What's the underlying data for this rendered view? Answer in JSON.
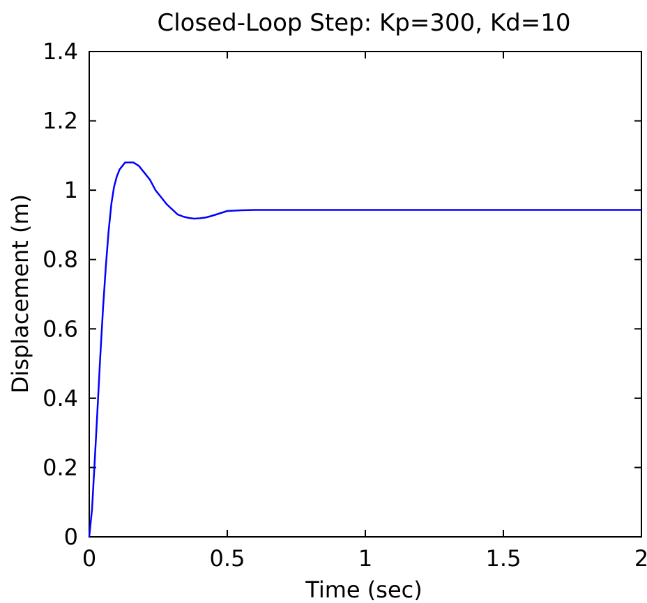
{
  "chart_data": {
    "type": "line",
    "title": "Closed-Loop Step: Kp=300, Kd=10",
    "xlabel": "Time (sec)",
    "ylabel": "Displacement (m)",
    "xlim": [
      0,
      2
    ],
    "ylim": [
      0,
      1.4
    ],
    "xticks": [
      0,
      0.5,
      1,
      1.5,
      2
    ],
    "yticks": [
      0,
      0.2,
      0.4,
      0.6,
      0.8,
      1,
      1.2,
      1.4
    ],
    "xtick_labels": [
      "0",
      "0.5",
      "1",
      "1.5",
      "2"
    ],
    "ytick_labels": [
      "0",
      "0.2",
      "0.4",
      "0.6",
      "0.8",
      "1",
      "1.2",
      "1.4"
    ],
    "grid": false,
    "line_color": "#0000ff",
    "series": [
      {
        "x": [
          0,
          0.01,
          0.02,
          0.03,
          0.04,
          0.05,
          0.06,
          0.07,
          0.08,
          0.09,
          0.1,
          0.11,
          0.12,
          0.13,
          0.14,
          0.15,
          0.16,
          0.17,
          0.18,
          0.19,
          0.2,
          0.22,
          0.24,
          0.26,
          0.28,
          0.3,
          0.32,
          0.34,
          0.36,
          0.38,
          0.4,
          0.42,
          0.44,
          0.46,
          0.48,
          0.5,
          0.55,
          0.6,
          0.7,
          0.8,
          1.0,
          1.2,
          1.4,
          1.6,
          1.8,
          2.0
        ],
        "values": [
          0,
          0.08,
          0.22,
          0.37,
          0.52,
          0.66,
          0.78,
          0.88,
          0.96,
          1.01,
          1.04,
          1.06,
          1.07,
          1.08,
          1.08,
          1.08,
          1.08,
          1.075,
          1.07,
          1.06,
          1.05,
          1.03,
          1.0,
          0.98,
          0.96,
          0.945,
          0.93,
          0.924,
          0.92,
          0.918,
          0.919,
          0.921,
          0.925,
          0.93,
          0.935,
          0.94,
          0.942,
          0.943,
          0.943,
          0.943,
          0.943,
          0.943,
          0.943,
          0.943,
          0.943,
          0.943
        ]
      }
    ]
  }
}
